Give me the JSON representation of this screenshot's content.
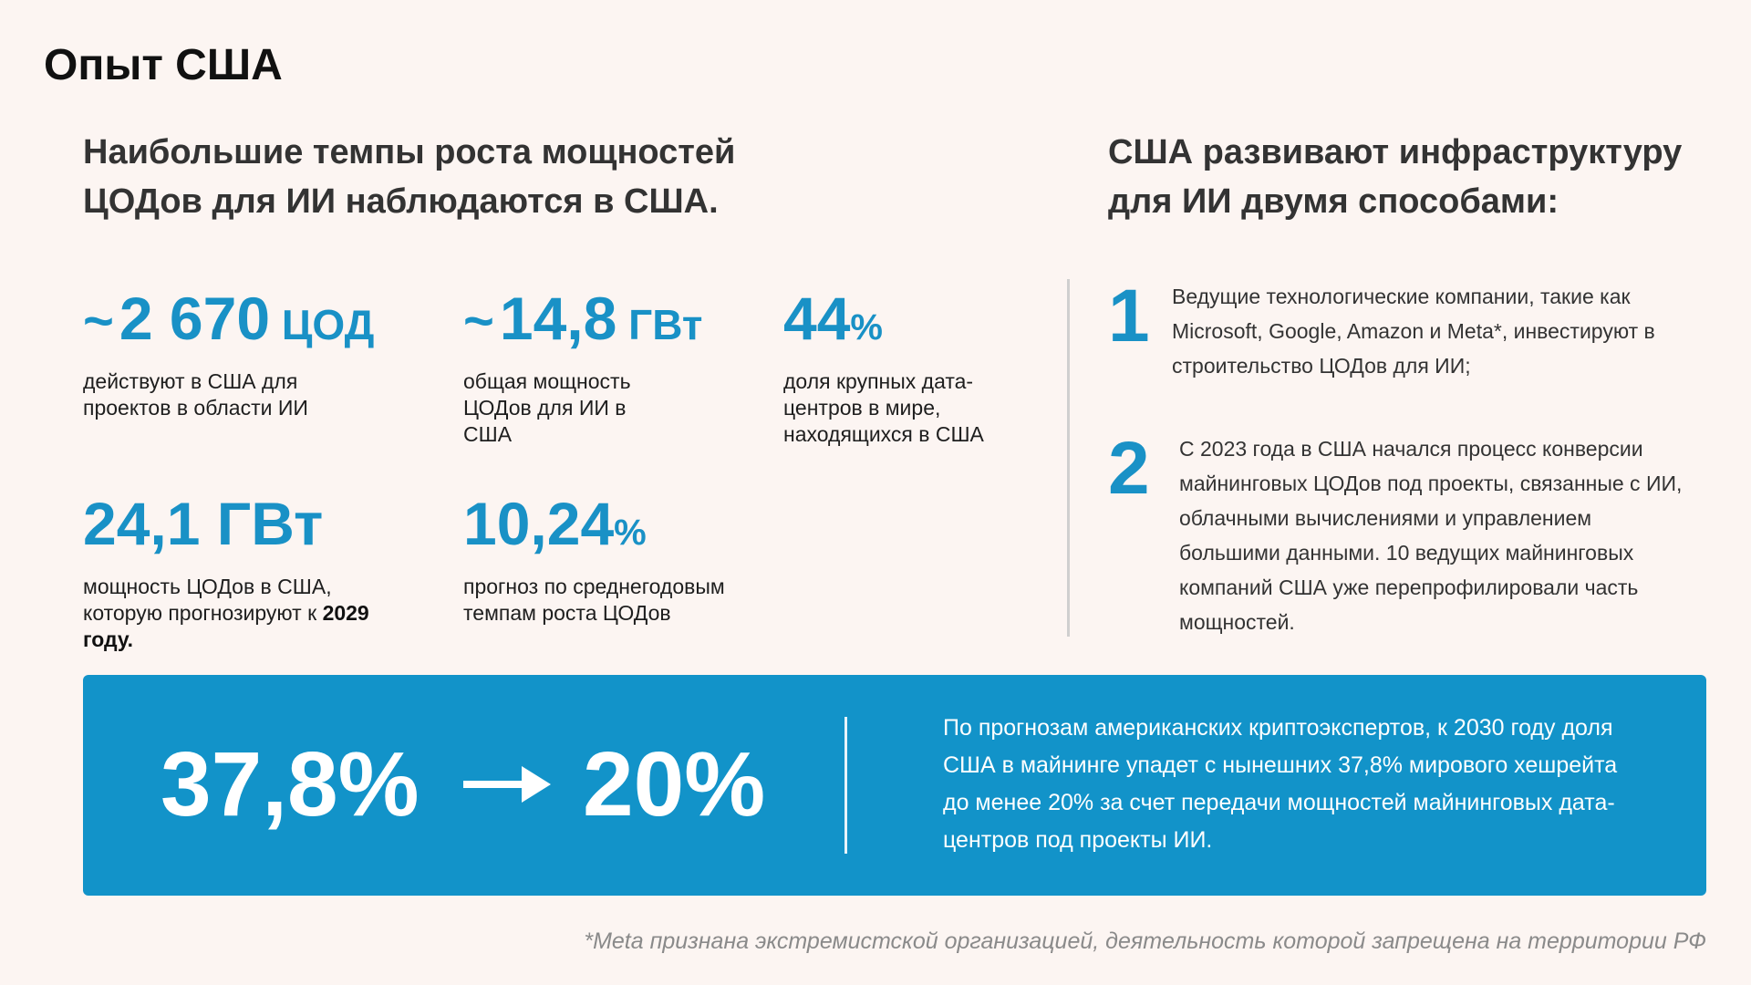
{
  "title": "Опыт США",
  "left_heading": "Наибольшие темпы роста мощностей ЦОДов для ИИ наблюдаются в США.",
  "right_heading": "США развивают инфраструктуру для ИИ двумя способами:",
  "stats": [
    {
      "prefix": "~",
      "value": "2 670",
      "unit": " ЦОД",
      "desc": "действуют в США для проектов в области ИИ"
    },
    {
      "prefix": "~",
      "value": "14,8",
      "unit": " ГВт",
      "desc": "общая мощность ЦОДов для ИИ в США"
    },
    {
      "value": "44",
      "unit": "%",
      "desc": "доля крупных дата-центров в мире, находящихся в США"
    },
    {
      "value": "24,1 ГВт",
      "desc": "мощность ЦОДов в США, которую прогнозируют к",
      "desc_bold": "2029 году."
    },
    {
      "value": "10,24",
      "unit": "%",
      "desc": "прогноз по среднегодовым темпам роста ЦОДов"
    }
  ],
  "ways": [
    {
      "num": "1",
      "text": "Ведущие технологические компании, такие как Microsoft, Google, Amazon и Meta*, инвестируют в строительство ЦОДов для ИИ;"
    },
    {
      "num": "2",
      "text": "С 2023 года в США начался процесс конверсии майнинговых ЦОДов под проекты, связанные с ИИ, облачными вычислениями и управлением большими данными. 10 ведущих майнинговых компаний США уже перепрофилировали часть мощностей."
    }
  ],
  "banner": {
    "from": "37,8%",
    "to": "20%",
    "text": "По прогнозам американских криптоэкспертов, к 2030 году доля США в майнинге упадет с нынешних 37,8% мирового хешрейта до менее 20% за счет передачи мощностей майнинговых дата-центров под проекты ИИ."
  },
  "footnote": "*Meta признана экстремистской организацией, деятельность которой запрещена на территории РФ",
  "colors": {
    "accent": "#1991c6",
    "banner": "#1293c9",
    "background": "#fcf5f2"
  }
}
